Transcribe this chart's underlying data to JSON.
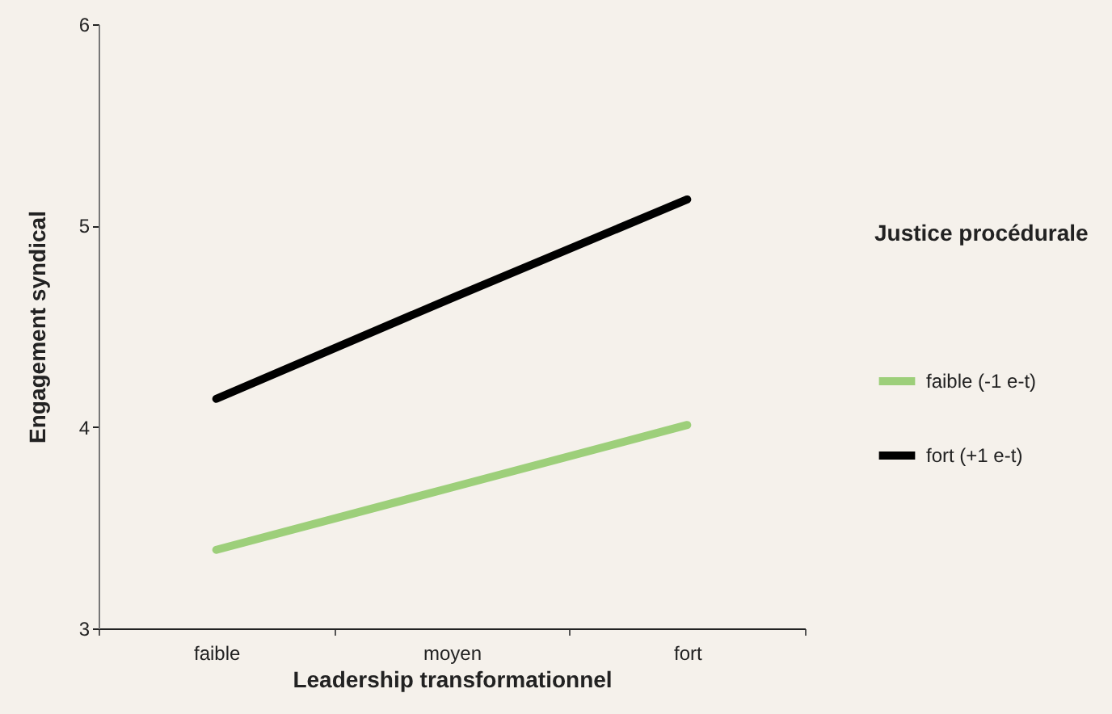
{
  "chart_data": {
    "type": "line",
    "xlabel": "Leadership transformationnel",
    "ylabel": "Engagement syndical",
    "legend_title": "Justice procédurale",
    "categories": [
      "faible",
      "moyen",
      "fort"
    ],
    "series": [
      {
        "name": "faible (-1 e-t)",
        "color": "#9dcf7a",
        "values": [
          3.39,
          3.7,
          4.01
        ]
      },
      {
        "name": "fort (+1 e-t)",
        "color": "#000000",
        "values": [
          4.14,
          4.64,
          5.13
        ]
      }
    ],
    "ylim": [
      3,
      6
    ],
    "yticks": [
      3,
      4,
      5,
      6
    ],
    "grid": false,
    "legend": "right",
    "marker": "none",
    "line_style": "solid"
  }
}
